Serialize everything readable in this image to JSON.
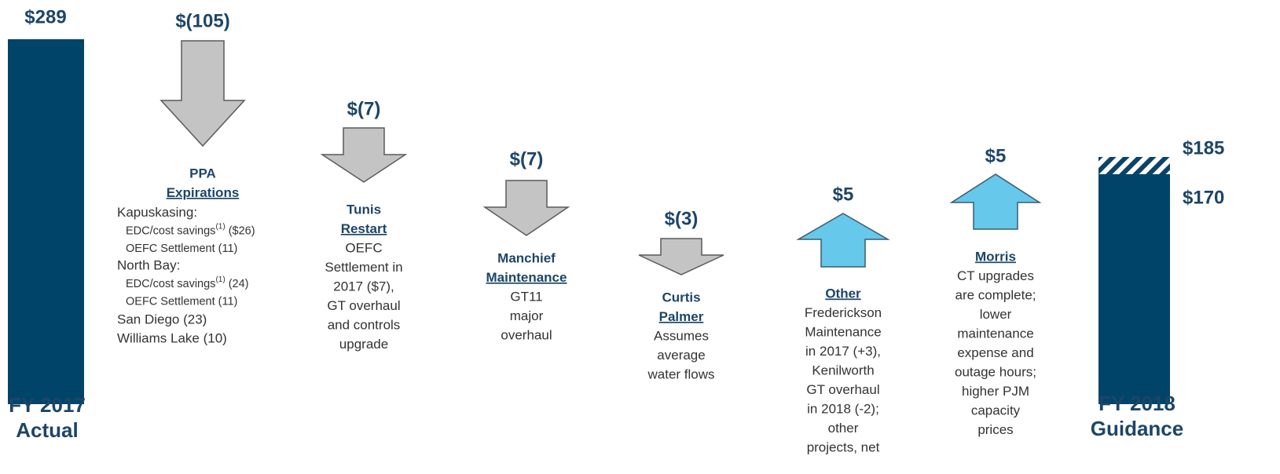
{
  "start": {
    "value": "$289",
    "label": [
      "FY 2017",
      "Actual"
    ]
  },
  "end": {
    "values": [
      "$185",
      "$170"
    ],
    "label": [
      "FY 2018",
      "Guidance"
    ]
  },
  "steps": [
    {
      "value": "$(105)",
      "direction": "down",
      "heading": "PPA",
      "underlined": "Expirations",
      "details": [
        {
          "text": "Kapuskasing:"
        },
        {
          "text": "EDC/cost savings",
          "sup": "(1)",
          "rest": " ($26)",
          "sub": true
        },
        {
          "text": "OEFC Settlement (11)",
          "sub": true
        },
        {
          "text": "North Bay:"
        },
        {
          "text": "EDC/cost savings",
          "sup": "(1)",
          "rest": " (24)",
          "sub": true
        },
        {
          "text": "OEFC Settlement (11)",
          "sub": true
        },
        {
          "text": "San Diego (23)"
        },
        {
          "text": "Williams Lake (10)"
        }
      ]
    },
    {
      "value": "$(7)",
      "direction": "down",
      "heading": "Tunis",
      "underlined": "Restart",
      "lines": [
        "OEFC",
        "Settlement in",
        "2017 ($7),",
        "GT overhaul",
        "and controls",
        "upgrade"
      ]
    },
    {
      "value": "$(7)",
      "direction": "down",
      "heading": "Manchief",
      "underlined": "Maintenance",
      "lines": [
        "GT11",
        "major",
        "overhaul"
      ]
    },
    {
      "value": "$(3)",
      "direction": "down",
      "heading": "Curtis",
      "underlined": "Palmer",
      "lines": [
        "Assumes",
        "average",
        "water flows"
      ]
    },
    {
      "value": "$5",
      "direction": "up",
      "underlined": "Other",
      "lines": [
        "Frederickson",
        "Maintenance",
        "in 2017 (+3),",
        "Kenilworth",
        "GT overhaul",
        "in 2018 (-2);",
        "other",
        "projects, net"
      ]
    },
    {
      "value": "$5",
      "direction": "up",
      "underlined": "Morris",
      "lines": [
        "CT upgrades",
        "are complete;",
        "lower",
        "maintenance",
        "expense and",
        "outage hours;",
        "higher PJM",
        "capacity",
        "prices"
      ]
    }
  ]
}
